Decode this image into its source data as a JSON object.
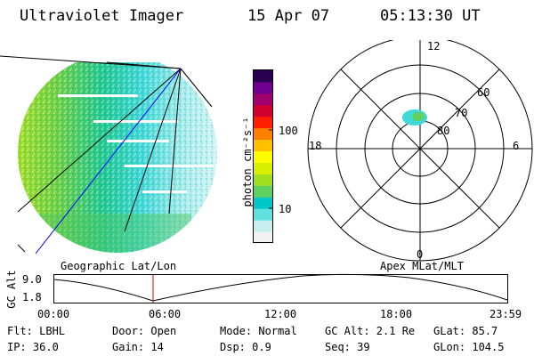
{
  "header": {
    "instrument": "Ultraviolet Imager",
    "date": "15 Apr 07",
    "time": "05:13:30 UT"
  },
  "colorbar": {
    "unit_label": "photon cm⁻²s⁻¹",
    "tick_100": "100",
    "tick_10": "10",
    "colors": [
      "#f2f2f2",
      "#c8f0f0",
      "#60e0e0",
      "#00c8c8",
      "#60d060",
      "#a0e020",
      "#d8f000",
      "#ffff00",
      "#ffc000",
      "#ff8000",
      "#ff2000",
      "#d00030",
      "#a00070",
      "#700090",
      "#2a0050"
    ]
  },
  "polar": {
    "mlt_top": "12",
    "mlt_bottom": "0",
    "mlt_left": "18",
    "mlt_right": "6",
    "lat_60": "60",
    "lat_70": "70",
    "lat_80": "80"
  },
  "labels": {
    "geographic": "Geographic Lat/Lon",
    "apex": "Apex MLat/MLT"
  },
  "altplot": {
    "axis_label": "GC Alt",
    "y_top": "9.0",
    "y_bottom": "1.8",
    "x_ticks": [
      "00:00",
      "06:00",
      "12:00",
      "18:00",
      "23:59"
    ]
  },
  "footer": {
    "flt": "Flt: LBHL",
    "ip": "IP: 36.0",
    "door": "Door: Open",
    "gain": "Gain: 14",
    "mode": "Mode: Normal",
    "dsp": "Dsp:    0.9",
    "gcalt": "GC Alt: 2.1 Re",
    "seq": "Seq: 39",
    "glat": "GLat:   85.7",
    "glon": "GLon: 104.5"
  }
}
